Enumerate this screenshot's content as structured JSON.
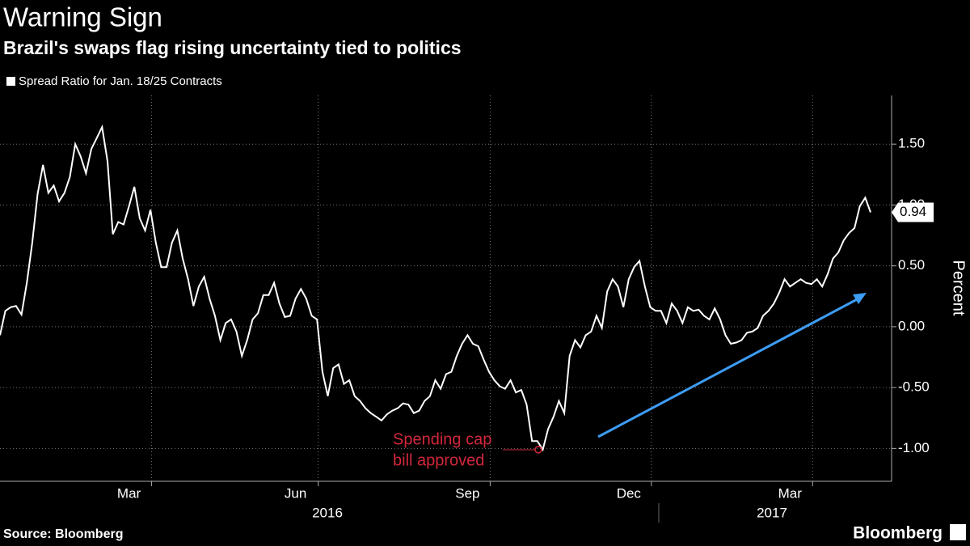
{
  "chart_data": {
    "type": "line",
    "title": "Warning Sign",
    "subtitle": "Brazil's swaps flag rising uncertainty tied to politics",
    "y_label": "Percent",
    "source": "Source: Bloomberg",
    "brand": "Bloomberg",
    "annotation": [
      "Spending cap",
      "bill approved"
    ],
    "x_groups": [
      "2016",
      "2017"
    ],
    "categories": [
      null,
      null,
      null,
      null,
      null,
      null,
      null,
      null,
      null,
      null,
      null,
      null,
      null,
      null,
      null,
      null,
      null,
      null,
      null,
      null,
      null,
      null,
      null,
      null,
      "Mar",
      null,
      null,
      null,
      null,
      null,
      null,
      null,
      null,
      null,
      null,
      null,
      null,
      null,
      null,
      null,
      null,
      null,
      null,
      null,
      null,
      null,
      null,
      null,
      null,
      null,
      null,
      null,
      null,
      null,
      null,
      "Jun",
      null,
      null,
      null,
      null,
      null,
      null,
      null,
      null,
      null,
      null,
      null,
      null,
      null,
      null,
      null,
      null,
      null,
      null,
      null,
      null,
      null,
      null,
      null,
      null,
      null,
      null,
      null,
      null,
      null,
      null,
      null,
      "Sep",
      null,
      null,
      null,
      null,
      null,
      null,
      null,
      null,
      null,
      null,
      null,
      null,
      null,
      null,
      null,
      null,
      null,
      null,
      null,
      null,
      null,
      null,
      null,
      null,
      null,
      null,
      null,
      null,
      null,
      "Dec",
      null,
      null,
      null,
      null,
      null,
      null,
      null,
      null,
      null,
      null,
      null,
      null,
      null,
      null,
      null,
      null,
      null,
      null,
      null,
      null,
      null,
      null,
      null,
      null,
      null,
      null,
      null,
      null,
      null,
      "Mar",
      null,
      null,
      null,
      null,
      null,
      null,
      null,
      null,
      null,
      null,
      null,
      null,
      null,
      null,
      null
    ],
    "series": [
      {
        "name": "Spread Ratio for Jan. 18/25 Contracts",
        "color": "#ffffff",
        "values": [
          -0.07,
          0.13,
          0.16,
          0.17,
          0.1,
          0.36,
          0.69,
          1.09,
          1.33,
          1.1,
          1.16,
          1.03,
          1.1,
          1.23,
          1.5,
          1.4,
          1.26,
          1.46,
          1.55,
          1.64,
          1.36,
          0.76,
          0.86,
          0.84,
          0.99,
          1.15,
          0.89,
          0.79,
          0.96,
          0.69,
          0.49,
          0.49,
          0.69,
          0.79,
          0.56,
          0.39,
          0.17,
          0.33,
          0.41,
          0.23,
          0.09,
          -0.11,
          0.03,
          0.06,
          -0.04,
          -0.24,
          -0.11,
          0.06,
          0.11,
          0.26,
          0.26,
          0.36,
          0.19,
          0.08,
          0.09,
          0.23,
          0.31,
          0.23,
          0.09,
          0.06,
          -0.37,
          -0.57,
          -0.34,
          -0.31,
          -0.47,
          -0.44,
          -0.57,
          -0.61,
          -0.67,
          -0.71,
          -0.74,
          -0.77,
          -0.72,
          -0.69,
          -0.67,
          -0.63,
          -0.64,
          -0.71,
          -0.69,
          -0.61,
          -0.57,
          -0.44,
          -0.51,
          -0.39,
          -0.37,
          -0.24,
          -0.14,
          -0.07,
          -0.14,
          -0.16,
          -0.27,
          -0.37,
          -0.44,
          -0.49,
          -0.51,
          -0.44,
          -0.54,
          -0.52,
          -0.64,
          -0.94,
          -0.94,
          -1.01,
          -0.84,
          -0.74,
          -0.61,
          -0.71,
          -0.24,
          -0.11,
          -0.17,
          -0.07,
          -0.04,
          0.09,
          -0.01,
          0.29,
          0.39,
          0.33,
          0.16,
          0.39,
          0.49,
          0.54,
          0.33,
          0.16,
          0.13,
          0.13,
          0.03,
          0.19,
          0.13,
          0.03,
          0.16,
          0.13,
          0.14,
          0.09,
          0.06,
          0.15,
          0.06,
          -0.07,
          -0.14,
          -0.13,
          -0.11,
          -0.05,
          -0.04,
          -0.01,
          0.09,
          0.13,
          0.19,
          0.28,
          0.39,
          0.33,
          0.36,
          0.39,
          0.36,
          0.35,
          0.39,
          0.33,
          0.43,
          0.56,
          0.61,
          0.71,
          0.77,
          0.81,
          0.99,
          1.06,
          0.94
        ]
      }
    ],
    "ylim": [
      -1.27,
      1.9
    ],
    "yticks": [
      {
        "value": -1,
        "label": "-1.00"
      },
      {
        "value": -0.5,
        "label": "-0.50"
      },
      {
        "value": 0,
        "label": "0.00"
      },
      {
        "value": 0.5,
        "label": "0.50"
      },
      {
        "value": 1,
        "label": "1.00"
      },
      {
        "value": 1.5,
        "label": "1.50"
      }
    ],
    "grid": true
  }
}
